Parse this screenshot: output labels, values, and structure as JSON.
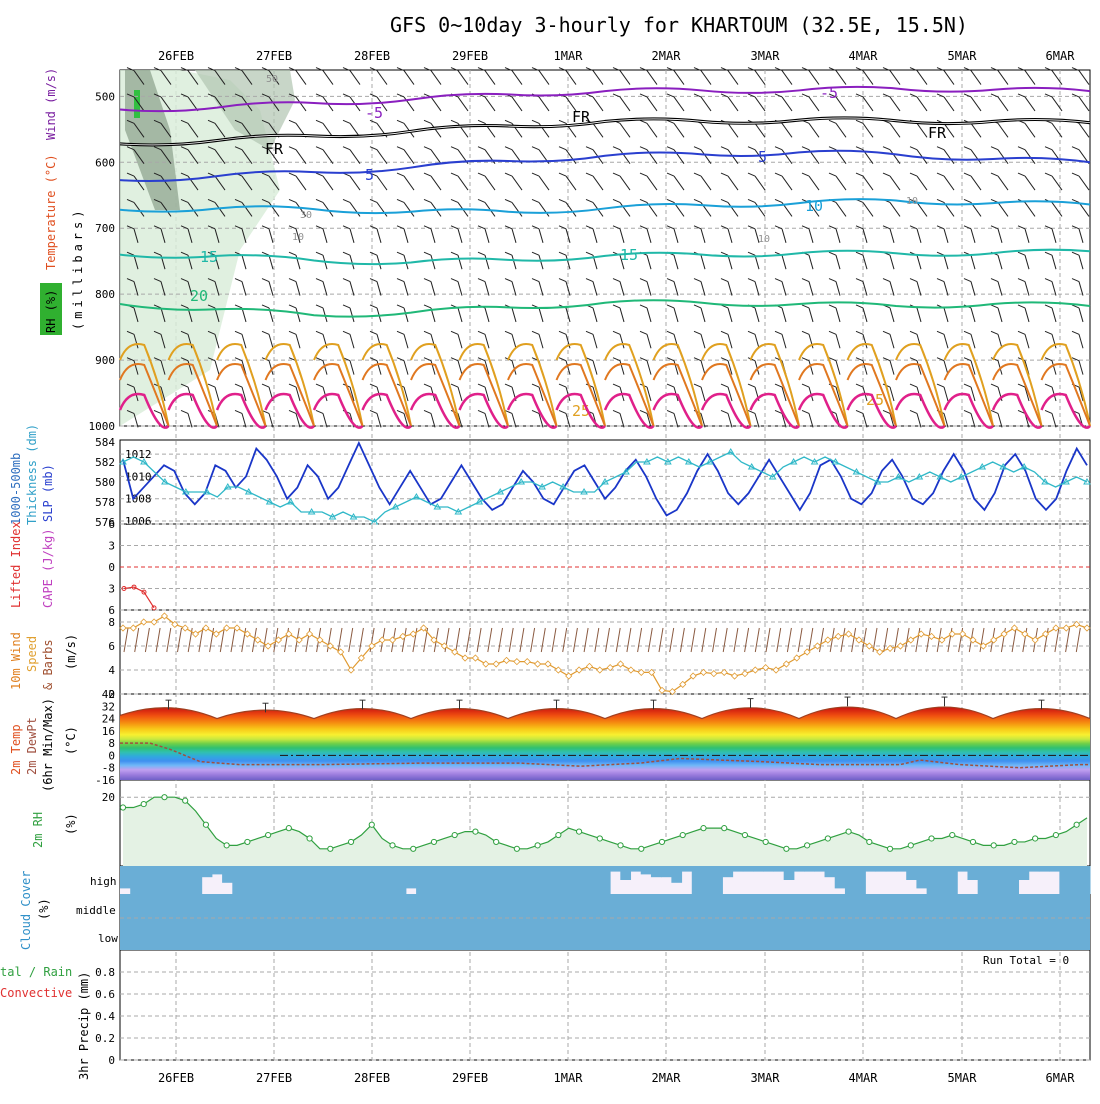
{
  "title": "GFS 0~10day 3-hourly for KHARTOUM (32.5E, 15.5N)",
  "dates": [
    "26FEB",
    "27FEB",
    "28FEB",
    "29FEB",
    "1MAR",
    "2MAR",
    "3MAR",
    "4MAR",
    "5MAR",
    "6MAR"
  ],
  "colors": {
    "t_minus5": "#8a1fbf",
    "t_0": "#000000",
    "t_5": "#2a3fcf",
    "t_10": "#1aa0d8",
    "t_15": "#20b8a8",
    "t_20": "#20b878",
    "t_25": "#e0a020",
    "t_30": "#e07820",
    "t_35": "#e0208a",
    "slp": "#1a36c8",
    "thickness": "#30b8c8",
    "lifted": "#e03030",
    "wind10": "#e09a30",
    "rh2m": "#30a040",
    "cloud": "#6aaed6",
    "dew": "#a05040"
  },
  "panel_labels": {
    "upper_wind": "Wind (m/s)",
    "upper_temp": "Temperature (°C)",
    "upper_rh": "RH (%)",
    "upper_unit": "(millibars)",
    "thick_1": "1000-500mb",
    "thick_2": "Thickness (dm)",
    "slp": "SLP (mb)",
    "lifted": "Lifted Index",
    "cape": "CAPE (J/kg)",
    "wind_1": "10m Wind",
    "wind_2": "Speed",
    "wind_3": "& Barbs",
    "wind_unit": "(m/s)",
    "temp_1": "2m Temp",
    "temp_2": "2m DewPt",
    "temp_3": "(6hr Min/Max)",
    "temp_unit": "(°C)",
    "rh_1": "2m RH",
    "rh_unit": "(%)",
    "cloud_1": "Cloud Cover",
    "cloud_unit": "(%)",
    "precip_1": "tal / Rain",
    "precip_2": "Convective",
    "precip_3": "3hr Precip (mm)",
    "run_total": "Run Total = 0"
  },
  "cloud_levels": [
    "high",
    "middle",
    "low"
  ],
  "contour_labels": {
    "m5": "-5",
    "fr": "FR",
    "p5": "5",
    "p10": "10",
    "p15": "15",
    "p20": "20",
    "p25": "25",
    "small10": "10",
    "small30": "30",
    "small50": "50"
  },
  "chart_data": [
    {
      "type": "line",
      "name": "upper-air",
      "ylabel": "(millibars)",
      "y_ticks": [
        500,
        600,
        700,
        800,
        900,
        1000
      ],
      "ylim": [
        460,
        1000
      ],
      "isotherms": [
        {
          "label": "-5",
          "pressure": [
            520,
            517,
            510,
            505,
            497,
            492,
            491,
            491,
            488,
            490,
            492
          ]
        },
        {
          "label": "FR",
          "pressure": [
            572,
            567,
            560,
            553,
            545,
            538,
            538,
            536,
            537,
            538,
            540
          ]
        },
        {
          "label": "5",
          "pressure": [
            627,
            621,
            615,
            608,
            598,
            590,
            588,
            585,
            588,
            595,
            600
          ]
        },
        {
          "label": "10",
          "pressure": [
            672,
            670,
            671,
            675,
            675,
            670,
            665,
            662,
            658,
            662,
            664
          ]
        },
        {
          "label": "15",
          "pressure": [
            740,
            742,
            749,
            752,
            748,
            742,
            740,
            738,
            738,
            738,
            735
          ]
        },
        {
          "label": "20",
          "pressure": [
            815,
            823,
            832,
            828,
            820,
            813,
            813,
            815,
            818,
            815,
            818
          ]
        }
      ]
    },
    {
      "type": "line",
      "name": "slp-thickness",
      "slp_ylim": [
        1006,
        1013
      ],
      "slp_ticks": [
        1006,
        1008,
        1010,
        1012
      ],
      "thick_ylim": [
        576,
        584
      ],
      "thick_ticks": [
        576,
        578,
        580,
        582,
        584
      ],
      "slp": [
        1011.5,
        1008,
        1009,
        1010,
        1011,
        1010.5,
        1008.5,
        1007.5,
        1008.5,
        1011,
        1010.5,
        1009,
        1010,
        1012.5,
        1011.5,
        1010,
        1008,
        1009,
        1011,
        1010,
        1008,
        1009,
        1011,
        1013,
        1011,
        1009,
        1007.5,
        1009,
        1010.5,
        1009,
        1007.5,
        1008,
        1009.5,
        1011,
        1009.5,
        1008,
        1007,
        1007.5,
        1009,
        1010.5,
        1009.5,
        1008,
        1007.5,
        1009,
        1010.5,
        1011,
        1009.5,
        1008,
        1009,
        1010.5,
        1011.5,
        1010,
        1008,
        1006.5,
        1007,
        1008.5,
        1010.5,
        1012,
        1010.5,
        1008.5,
        1007.5,
        1008.5,
        1010,
        1011.5,
        1010,
        1008.5,
        1007,
        1008.5,
        1011,
        1011.5,
        1010,
        1008,
        1007.5,
        1008.5,
        1010.5,
        1011.5,
        1010,
        1008,
        1007.5,
        1008.5,
        1010.5,
        1012,
        1010.5,
        1008,
        1007,
        1008.5,
        1011,
        1012,
        1010.5,
        1008,
        1007,
        1008,
        1010.5,
        1012.5,
        1011
      ],
      "thickness": [
        582,
        582.5,
        582,
        581,
        580,
        579.5,
        579,
        579,
        579,
        578.5,
        579.5,
        579.5,
        579,
        578.5,
        578,
        577.5,
        578,
        577,
        577,
        577,
        576.5,
        577,
        576.5,
        576.5,
        576,
        577,
        577.5,
        578,
        578.5,
        578,
        577.5,
        577.5,
        577,
        577.5,
        578,
        578.5,
        579,
        579.5,
        580,
        580,
        579.5,
        580,
        579.5,
        579,
        579,
        579,
        580,
        580.5,
        581,
        582,
        582,
        582.5,
        582,
        582.5,
        582,
        581.5,
        582,
        582.5,
        583,
        582,
        581.5,
        581,
        580.5,
        581.5,
        582,
        582.5,
        582,
        582.5,
        582,
        581.5,
        581,
        580.5,
        580,
        580,
        580.5,
        580,
        580.5,
        581,
        580.5,
        580,
        580.5,
        581,
        581.5,
        582,
        581.5,
        581,
        581.5,
        581,
        580,
        579.5,
        580,
        580.5,
        580
      ]
    },
    {
      "type": "line",
      "name": "lifted-cape",
      "ylim": [
        6,
        -6
      ],
      "y_ticks": [
        -6,
        -3,
        0,
        3,
        6
      ],
      "lifted": [
        3,
        2.8,
        3.5,
        5.7
      ]
    },
    {
      "type": "line",
      "name": "10m-wind",
      "ylabel": "(m/s)",
      "ylim": [
        2,
        9
      ],
      "y_ticks": [
        2,
        4,
        6,
        8
      ],
      "speed": [
        7.5,
        7.5,
        8,
        8,
        8.5,
        7.8,
        7.5,
        7,
        7.5,
        7,
        7.5,
        7.5,
        7,
        6.5,
        6,
        6.5,
        7,
        6.5,
        7,
        6.5,
        6,
        5.5,
        4,
        5,
        6,
        6.5,
        6.5,
        6.8,
        7,
        7.5,
        6.5,
        6,
        5.5,
        5,
        5,
        4.5,
        4.5,
        4.8,
        4.7,
        4.7,
        4.5,
        4.5,
        4,
        3.5,
        4,
        4.3,
        4,
        4.2,
        4.5,
        4,
        3.8,
        3.8,
        2.3,
        2.2,
        2.8,
        3.5,
        3.8,
        3.7,
        3.8,
        3.5,
        3.7,
        4,
        4.2,
        4,
        4.5,
        5,
        5.5,
        6,
        6.5,
        6.8,
        7,
        6.5,
        6,
        5.5,
        5.8,
        6,
        6.5,
        7,
        6.8,
        6.5,
        7,
        7,
        6.5,
        6,
        6.5,
        7,
        7.5,
        7,
        6.5,
        7,
        7.5,
        7.5,
        7.8,
        7.5
      ]
    },
    {
      "type": "area",
      "name": "2m-temp",
      "ylabel": "(°C)",
      "ylim": [
        -16,
        40
      ],
      "y_ticks": [
        -16,
        -8,
        0,
        8,
        16,
        24,
        32,
        40
      ],
      "temp_max_cycle": [
        34,
        32,
        34,
        34,
        34,
        34,
        35,
        36,
        36,
        34
      ],
      "dewpoint_start": [
        8,
        8,
        8,
        6,
        2,
        -2,
        -5,
        -6,
        -6,
        -6
      ]
    },
    {
      "type": "line",
      "name": "2m-rh",
      "ylabel": "(%)",
      "ylim": [
        0,
        25
      ],
      "y_ticks": [
        20
      ],
      "values": [
        17,
        17,
        18,
        20,
        20,
        20,
        19,
        16,
        12,
        8,
        6,
        6,
        7,
        8,
        9,
        10,
        11,
        10,
        8,
        5,
        5,
        6,
        7,
        9,
        12,
        8,
        6,
        5,
        5,
        6,
        7,
        8,
        9,
        10,
        10,
        9,
        7,
        6,
        5,
        5,
        6,
        7,
        9,
        11,
        10,
        9,
        8,
        7,
        6,
        5,
        5,
        6,
        7,
        8,
        9,
        10,
        11,
        11,
        11,
        10,
        9,
        8,
        7,
        6,
        5,
        5,
        6,
        7,
        8,
        9,
        10,
        9,
        7,
        6,
        5,
        5,
        6,
        7,
        8,
        8,
        9,
        8,
        7,
        6,
        6,
        6,
        7,
        7,
        8,
        8,
        9,
        10,
        12,
        14
      ]
    },
    {
      "type": "bar",
      "name": "cloud-cover",
      "levels": [
        "high",
        "middle",
        "low"
      ],
      "high_cover_pct": [
        80,
        100,
        100,
        100,
        100,
        100,
        100,
        100,
        40,
        30,
        60,
        100,
        100,
        100,
        100,
        100,
        100,
        100,
        100,
        100,
        100,
        100,
        100,
        100,
        100,
        100,
        100,
        100,
        80,
        100,
        100,
        100,
        100,
        100,
        100,
        100,
        100,
        100,
        100,
        100,
        100,
        100,
        100,
        100,
        100,
        100,
        100,
        100,
        20,
        50,
        20,
        30,
        40,
        40,
        60,
        20,
        100,
        100,
        100,
        40,
        20,
        20,
        20,
        20,
        20,
        50,
        20,
        20,
        20,
        40,
        80,
        100,
        100,
        20,
        20,
        20,
        20,
        50,
        80,
        100,
        100,
        100,
        20,
        50,
        100,
        100,
        100,
        100,
        50,
        20,
        20,
        20,
        100,
        100,
        100
      ]
    },
    {
      "type": "bar",
      "name": "3hr-precip",
      "ylabel": "3hr Precip (mm)",
      "ylim": [
        0,
        1
      ],
      "y_ticks": [
        0,
        0.2,
        0.4,
        0.6,
        0.8
      ],
      "values": []
    }
  ]
}
